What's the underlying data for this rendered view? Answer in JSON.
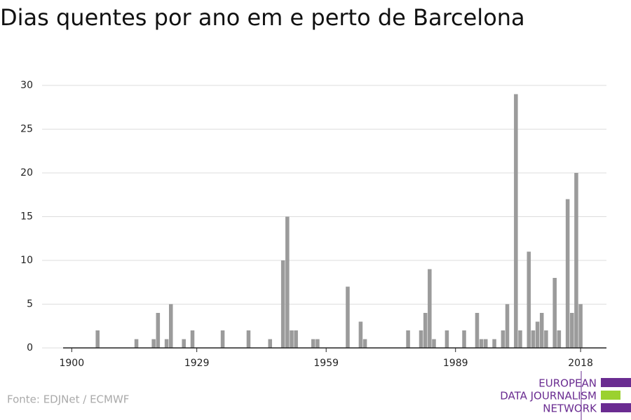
{
  "chart_data": {
    "type": "bar",
    "title": "Dias quentes por ano em e perto de Barcelona",
    "x": [
      1906,
      1915,
      1919,
      1920,
      1922,
      1923,
      1926,
      1928,
      1935,
      1941,
      1946,
      1949,
      1950,
      1951,
      1952,
      1956,
      1957,
      1964,
      1967,
      1968,
      1978,
      1981,
      1982,
      1983,
      1984,
      1987,
      1991,
      1994,
      1995,
      1996,
      1998,
      2000,
      2001,
      2003,
      2004,
      2006,
      2007,
      2008,
      2009,
      2010,
      2012,
      2013,
      2015,
      2016,
      2017,
      2018
    ],
    "values": [
      2,
      1,
      1,
      4,
      1,
      5,
      1,
      2,
      2,
      2,
      1,
      10,
      15,
      2,
      2,
      1,
      1,
      7,
      3,
      1,
      2,
      2,
      4,
      9,
      1,
      2,
      2,
      4,
      1,
      1,
      1,
      2,
      5,
      29,
      2,
      11,
      2,
      3,
      4,
      2,
      8,
      2,
      17,
      4,
      20,
      5
    ],
    "color": "#9b9b9b",
    "xlim": [
      1898,
      2024
    ],
    "xticks": [
      1900,
      1929,
      1959,
      1989,
      2018
    ],
    "ylim": [
      0,
      30
    ],
    "yticks": [
      0,
      5,
      10,
      15,
      20,
      25,
      30
    ],
    "grid": true,
    "source": "Fonte: EDJNet / ECMWF",
    "logo": [
      "EUROPEAN",
      "DATA JOURNALISM",
      "NETWORK"
    ]
  }
}
